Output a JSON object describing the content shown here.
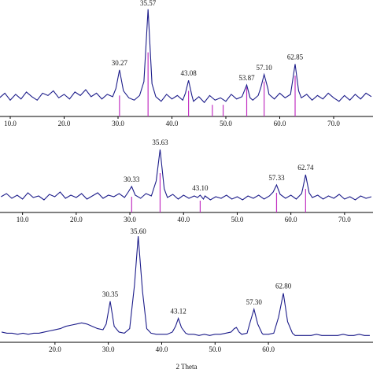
{
  "chart_data": [
    {
      "type": "line",
      "xlim": [
        8.1,
        77.3
      ],
      "ylim": [
        0,
        100
      ],
      "xticks": [
        {
          "value": 10,
          "label": "10.0"
        },
        {
          "value": 20,
          "label": "20.0"
        },
        {
          "value": 30,
          "label": "30.0"
        },
        {
          "value": 40,
          "label": "40.0"
        },
        {
          "value": 50,
          "label": "50.0"
        },
        {
          "value": 60,
          "label": "60.0"
        },
        {
          "value": 70,
          "label": "70.0"
        }
      ],
      "series": [
        {
          "color": "#1c1c8a",
          "x": [
            8,
            9,
            10,
            11,
            12,
            13,
            14,
            15,
            16,
            17,
            18,
            19,
            20,
            21,
            22,
            23,
            24,
            25,
            26,
            27,
            28,
            29,
            29.6,
            30.27,
            31,
            32,
            33,
            34,
            34.8,
            35.57,
            36.3,
            37,
            38,
            39,
            40,
            41,
            42,
            42.5,
            43.08,
            43.7,
            44,
            45,
            46,
            47,
            48,
            49,
            50,
            51,
            52,
            53,
            53.87,
            54.5,
            55,
            56,
            56.5,
            57.1,
            57.8,
            58,
            59,
            60,
            61,
            62,
            62.3,
            62.85,
            63.5,
            64,
            65,
            66,
            67,
            68,
            69,
            70,
            71,
            72,
            73,
            74,
            75,
            76,
            77
          ],
          "values": [
            16,
            20,
            14,
            19,
            15,
            21,
            17,
            14,
            20,
            18,
            22,
            16,
            19,
            15,
            21,
            18,
            23,
            17,
            20,
            15,
            19,
            17,
            24,
            40,
            22,
            16,
            14,
            18,
            30,
            92,
            28,
            17,
            13,
            19,
            15,
            18,
            14,
            20,
            31,
            18,
            13,
            17,
            12,
            18,
            14,
            16,
            13,
            19,
            15,
            17,
            27,
            16,
            14,
            18,
            25,
            36,
            24,
            19,
            15,
            20,
            16,
            19,
            28,
            45,
            22,
            16,
            19,
            14,
            18,
            15,
            20,
            16,
            13,
            18,
            14,
            19,
            15,
            20,
            17
          ]
        }
      ],
      "sticks": {
        "color": "#c232c2",
        "x": [
          30.27,
          35.57,
          43.08,
          47.5,
          49.5,
          53.87,
          57.1,
          62.85
        ],
        "values": [
          18,
          55,
          22,
          10,
          10,
          25,
          30,
          35
        ]
      },
      "annotations": [
        {
          "value": 30.27,
          "label": "30.27"
        },
        {
          "value": 35.57,
          "label": "35.57"
        },
        {
          "value": 43.08,
          "label": "43.08"
        },
        {
          "value": 53.87,
          "label": "53.87"
        },
        {
          "value": 57.1,
          "label": "57.10"
        },
        {
          "value": 62.85,
          "label": "62.85"
        }
      ]
    },
    {
      "type": "line",
      "xlim": [
        5.8,
        75.3
      ],
      "ylim": [
        0,
        100
      ],
      "xticks": [
        {
          "value": 10,
          "label": "10.0"
        },
        {
          "value": 20,
          "label": "20.0"
        },
        {
          "value": 30,
          "label": "30.0"
        },
        {
          "value": 40,
          "label": "40.0"
        },
        {
          "value": 50,
          "label": "50.0"
        },
        {
          "value": 60,
          "label": "60.0"
        },
        {
          "value": 70,
          "label": "70.0"
        }
      ],
      "series": [
        {
          "color": "#1c1c8a",
          "x": [
            6,
            7,
            8,
            9,
            10,
            11,
            12,
            13,
            14,
            15,
            16,
            17,
            18,
            19,
            20,
            21,
            22,
            23,
            24,
            25,
            26,
            27,
            28,
            29,
            29.7,
            30.33,
            31,
            32,
            33,
            34,
            34.9,
            35.63,
            36.4,
            37,
            38,
            39,
            40,
            41,
            42,
            42.6,
            43.1,
            43.7,
            44,
            45,
            46,
            47,
            48,
            49,
            50,
            51,
            52,
            53,
            54,
            55,
            56,
            56.7,
            57.33,
            58,
            59,
            60,
            61,
            62,
            62.2,
            62.74,
            63.4,
            64,
            65,
            66,
            67,
            68,
            69,
            70,
            71,
            72,
            73,
            74,
            75
          ],
          "values": [
            20,
            24,
            18,
            22,
            17,
            25,
            19,
            21,
            16,
            23,
            20,
            26,
            18,
            22,
            19,
            24,
            17,
            21,
            25,
            18,
            22,
            20,
            24,
            19,
            26,
            33,
            22,
            18,
            24,
            21,
            40,
            80,
            30,
            19,
            23,
            17,
            22,
            18,
            21,
            19,
            22,
            17,
            21,
            16,
            20,
            18,
            22,
            17,
            20,
            16,
            21,
            18,
            22,
            17,
            21,
            26,
            35,
            23,
            18,
            22,
            17,
            24,
            30,
            48,
            25,
            19,
            22,
            17,
            21,
            18,
            23,
            17,
            20,
            16,
            21,
            18,
            20
          ]
        }
      ],
      "sticks": {
        "color": "#c232c2",
        "x": [
          30.33,
          35.63,
          43.1,
          57.33,
          62.74
        ],
        "values": [
          20,
          50,
          15,
          25,
          30
        ]
      },
      "annotations": [
        {
          "value": 30.33,
          "label": "30.33"
        },
        {
          "value": 35.63,
          "label": "35.63"
        },
        {
          "value": 43.1,
          "label": "43.10"
        },
        {
          "value": 57.33,
          "label": "57.33"
        },
        {
          "value": 62.74,
          "label": "62.74"
        }
      ]
    },
    {
      "type": "line",
      "xlim": [
        9.7,
        79.6
      ],
      "ylim": [
        0,
        100
      ],
      "xlabel": "2 Theta",
      "xticks": [
        {
          "value": 20,
          "label": "20.0"
        },
        {
          "value": 30,
          "label": "30.0"
        },
        {
          "value": 40,
          "label": "40.0"
        },
        {
          "value": 50,
          "label": "50.0"
        },
        {
          "value": 60,
          "label": "60.0"
        }
      ],
      "series": [
        {
          "color": "#1c1c8a",
          "x": [
            10,
            11,
            12,
            13,
            14,
            15,
            16,
            17,
            18,
            19,
            20,
            21,
            22,
            23,
            24,
            25,
            26,
            27,
            28,
            29,
            29.6,
            30.35,
            31.1,
            32,
            33,
            34,
            34.9,
            35.6,
            36.4,
            37.2,
            38,
            39,
            40,
            41,
            42,
            42.6,
            43.12,
            43.7,
            44.5,
            45,
            46,
            47,
            48,
            49,
            50,
            51,
            52,
            53,
            53.6,
            54,
            54.5,
            55,
            56,
            56.6,
            57.3,
            58,
            58.8,
            59,
            60,
            61,
            61.9,
            62.8,
            63.6,
            64.5,
            65,
            66,
            67,
            68,
            69,
            70,
            71,
            72,
            73,
            74,
            75,
            76,
            77,
            78,
            79
          ],
          "values": [
            9,
            8,
            8,
            7,
            8,
            7,
            8,
            8,
            9,
            10,
            11,
            12,
            14,
            15,
            16,
            17,
            16,
            14,
            12,
            11,
            16,
            36,
            14,
            9,
            8,
            12,
            50,
            93,
            45,
            12,
            8,
            7,
            7,
            7,
            9,
            14,
            21,
            13,
            8,
            7,
            7,
            6,
            7,
            6,
            7,
            7,
            8,
            9,
            12,
            13,
            9,
            7,
            8,
            18,
            29,
            16,
            8,
            7,
            7,
            8,
            22,
            43,
            18,
            8,
            6,
            6,
            6,
            6,
            7,
            6,
            6,
            6,
            6,
            7,
            6,
            6,
            7,
            6,
            6
          ]
        }
      ],
      "annotations": [
        {
          "value": 30.35,
          "label": "30.35"
        },
        {
          "value": 35.6,
          "label": "35.60"
        },
        {
          "value": 43.12,
          "label": "43.12"
        },
        {
          "value": 57.3,
          "label": "57.30"
        },
        {
          "value": 62.8,
          "label": "62.80"
        }
      ]
    }
  ]
}
